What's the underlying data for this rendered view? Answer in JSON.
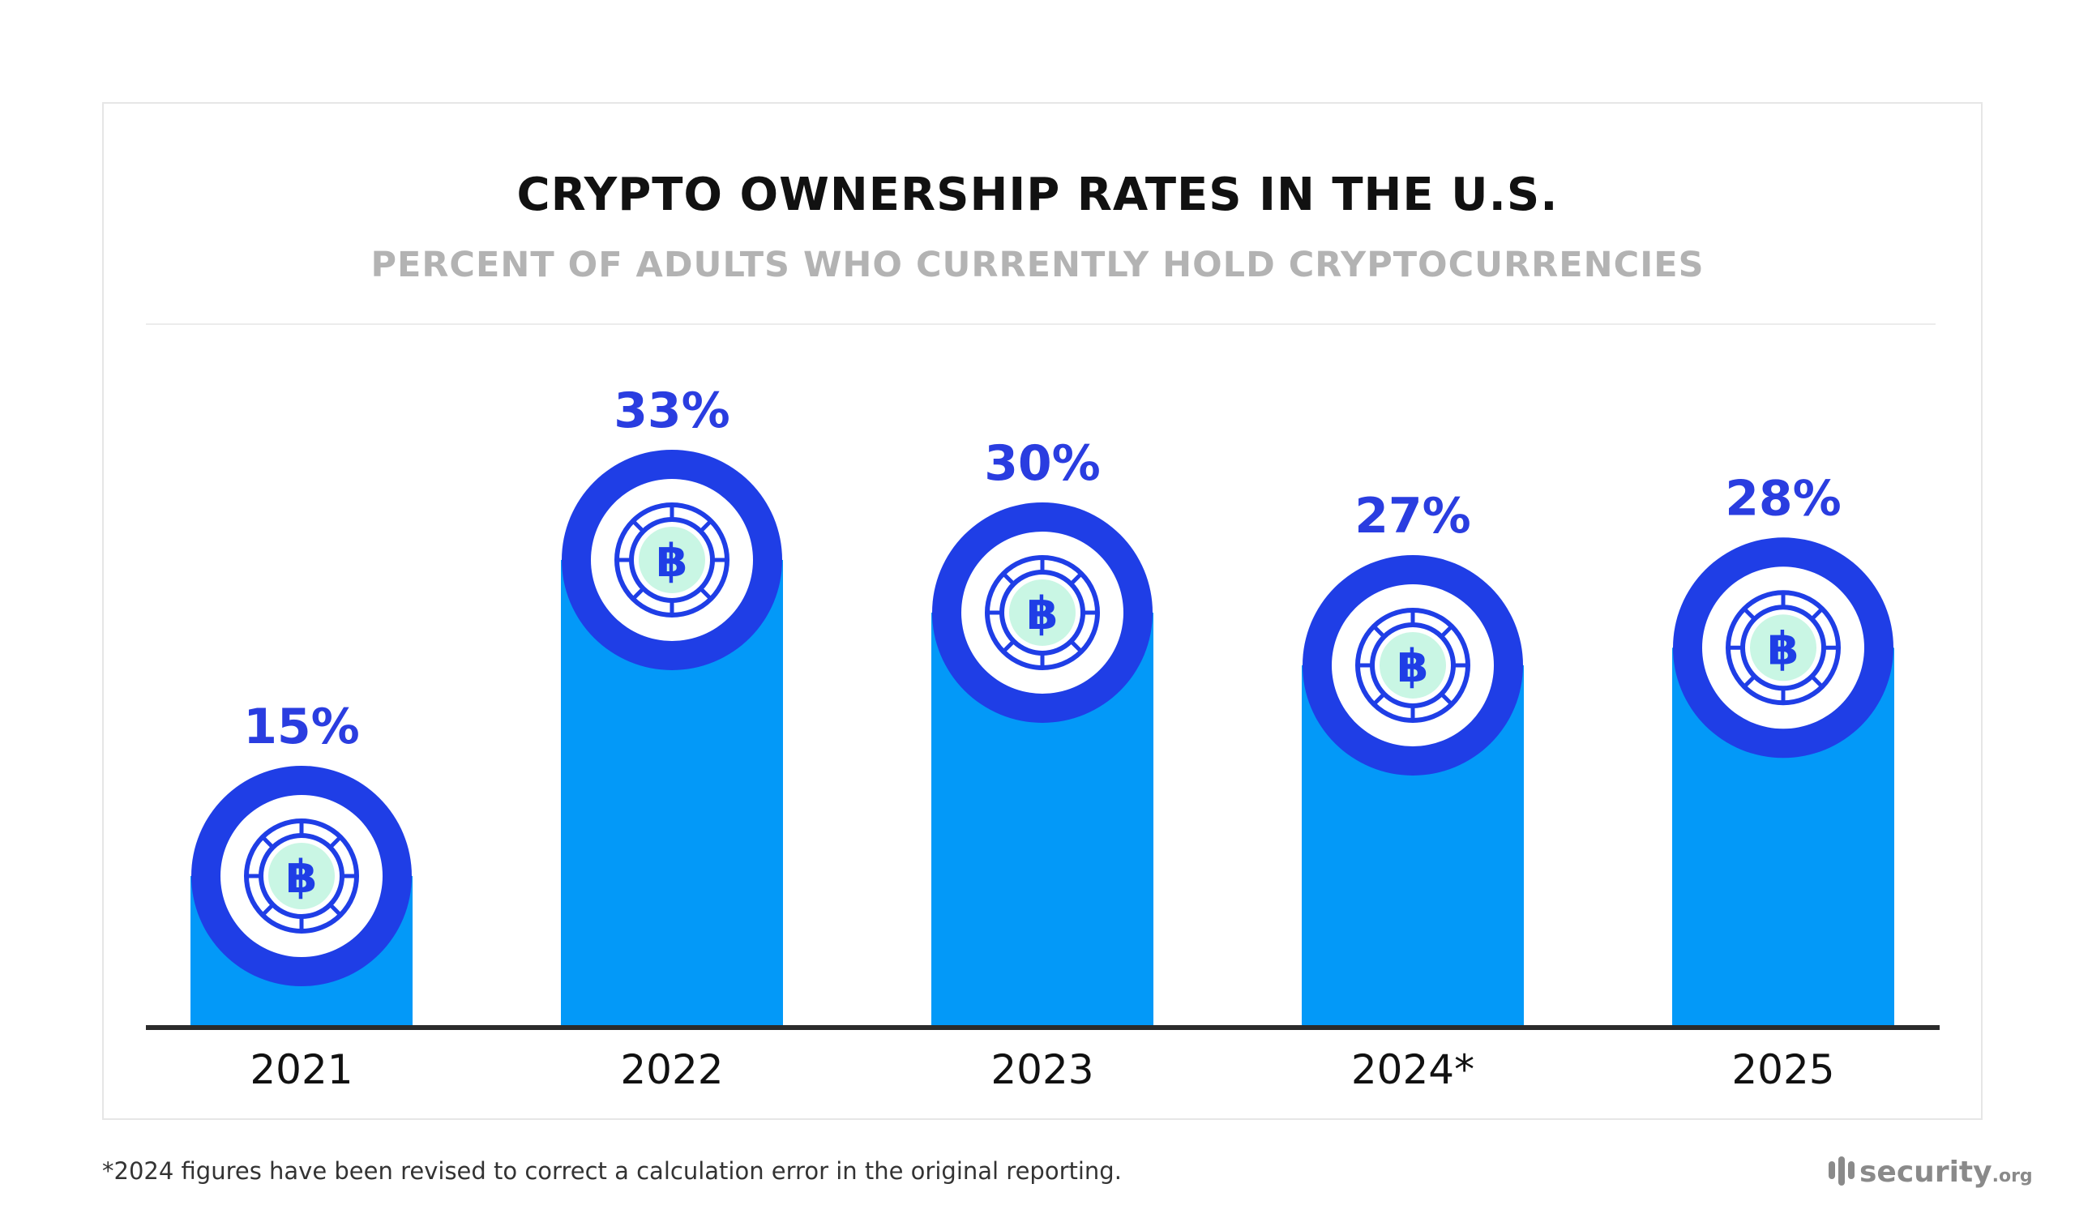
{
  "chart_data": {
    "type": "bar",
    "title": "CRYPTO OWNERSHIP RATES IN THE U.S.",
    "subtitle": "PERCENT OF ADULTS WHO CURRENTLY HOLD CRYPTOCURRENCIES",
    "categories": [
      "2021",
      "2022",
      "2023",
      "2024*",
      "2025"
    ],
    "values": [
      15,
      33,
      30,
      27,
      28
    ],
    "data_labels": [
      "15%",
      "33%",
      "30%",
      "27%",
      "28%"
    ],
    "xlabel": "",
    "ylabel": "",
    "grid": false,
    "icon": "bitcoin-coin-icon",
    "colors": {
      "bar": "#0399f8",
      "ring": "#1f3ee6",
      "label": "#2a3de0",
      "coin_center": "#c9f6e4"
    }
  },
  "footnote": "*2024 figures have been revised to correct a calculation error in the original reporting.",
  "logo": {
    "main": "security",
    "tld": ".org"
  }
}
